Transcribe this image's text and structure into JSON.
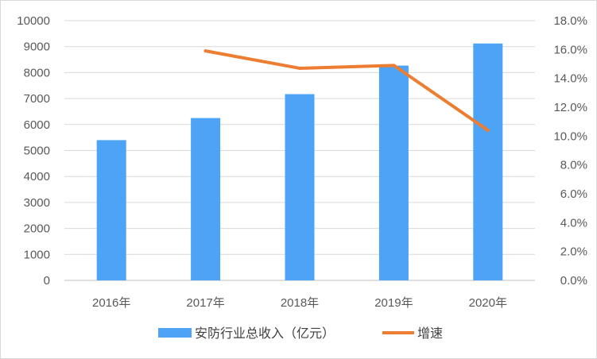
{
  "chart_data": {
    "type": "bar",
    "categories": [
      "2016年",
      "2017年",
      "2018年",
      "2019年",
      "2020年"
    ],
    "series": [
      {
        "name": "安防行业总收入（亿元）",
        "type": "bar",
        "axis": "left",
        "color": "#4da3f5",
        "values": [
          5400,
          6250,
          7170,
          8270,
          9120
        ]
      },
      {
        "name": "增速",
        "type": "line",
        "axis": "right",
        "color": "#ed7d31",
        "values": [
          null,
          15.9,
          14.7,
          14.9,
          10.4
        ]
      }
    ],
    "ylim": [
      0,
      10000
    ],
    "y_ticks": [
      "0",
      "1000",
      "2000",
      "3000",
      "4000",
      "5000",
      "6000",
      "7000",
      "8000",
      "9000",
      "10000"
    ],
    "y2lim": [
      0,
      18
    ],
    "y2_ticks": [
      "0.0%",
      "2.0%",
      "4.0%",
      "6.0%",
      "8.0%",
      "10.0%",
      "12.0%",
      "14.0%",
      "16.0%",
      "18.0%"
    ],
    "grid": true,
    "legend_position": "bottom"
  }
}
